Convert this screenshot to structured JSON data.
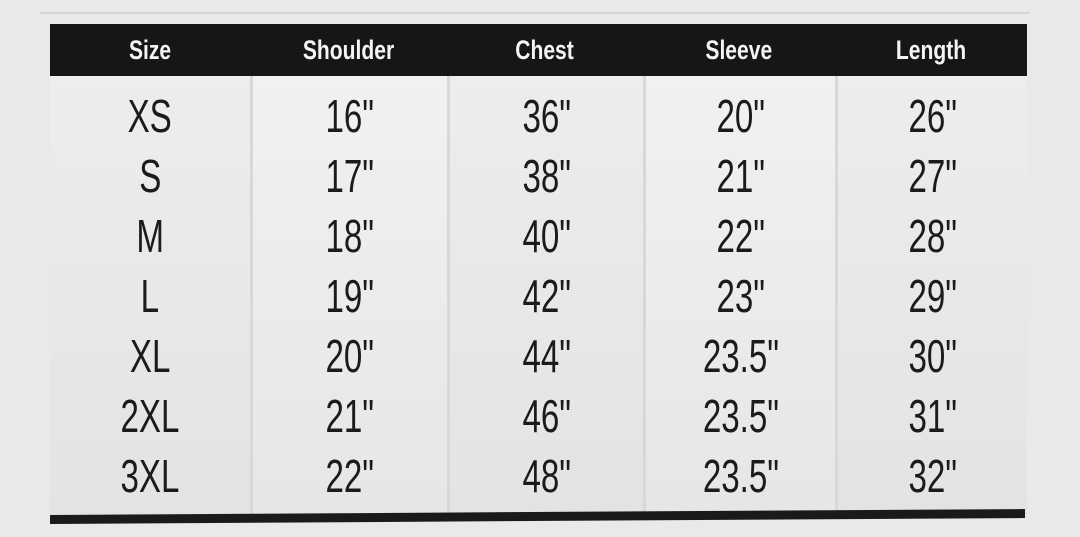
{
  "headers": [
    "Size",
    "Shoulder",
    "Chest",
    "Sleeve",
    "Length"
  ],
  "columns": [
    [
      "XS",
      "S",
      "M",
      "L",
      "XL",
      "2XL",
      "3XL"
    ],
    [
      "16\"",
      "17\"",
      "18\"",
      "19\"",
      "20\"",
      "21\"",
      "22\""
    ],
    [
      "36\"",
      "38\"",
      "40\"",
      "42\"",
      "44\"",
      "46\"",
      "48\""
    ],
    [
      "20\"",
      "21\"",
      "22\"",
      "23\"",
      "23.5\"",
      "23.5\"",
      "23.5\""
    ],
    [
      "26\"",
      "27\"",
      "28\"",
      "29\"",
      "30\"",
      "31\"",
      "32\""
    ]
  ],
  "colors": {
    "header_bg": "#161616",
    "header_text": "#f4f4f4",
    "text": "#1b1b1b",
    "background": "#e9e9ea"
  }
}
